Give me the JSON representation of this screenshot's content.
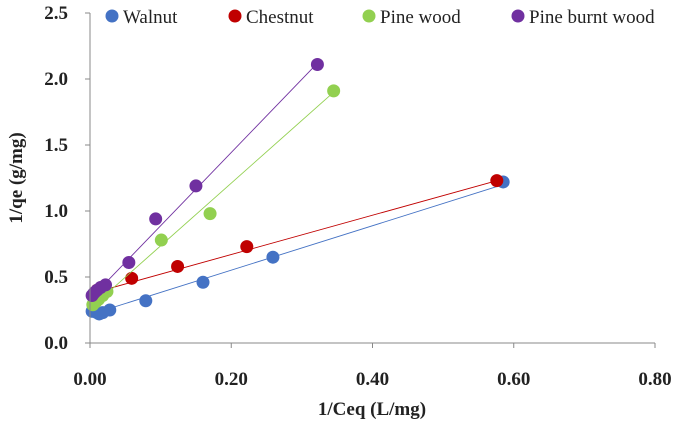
{
  "chart_data": {
    "type": "scatter",
    "title": "",
    "xlabel": "1/Ceq (L/mg)",
    "ylabel": "1/qe (g/mg)",
    "xlim": [
      0,
      0.8
    ],
    "ylim": [
      0,
      2.5
    ],
    "x_ticks": [
      "0.00",
      "0.20",
      "0.40",
      "0.60",
      "0.80"
    ],
    "y_ticks": [
      "0.0",
      "0.5",
      "1.0",
      "1.5",
      "2.0",
      "2.5"
    ],
    "grid": false,
    "legend_position": "top",
    "series": [
      {
        "name": "Walnut",
        "color": "#4472C4",
        "x": [
          0.003,
          0.006,
          0.01,
          0.013,
          0.018,
          0.028,
          0.079,
          0.16,
          0.259,
          0.585
        ],
        "y": [
          0.24,
          0.25,
          0.23,
          0.22,
          0.23,
          0.25,
          0.32,
          0.46,
          0.65,
          1.22
        ],
        "trendline": [
          [
            0.003,
            0.22
          ],
          [
            0.585,
            1.2
          ]
        ]
      },
      {
        "name": "Chestnut",
        "color": "#C00000",
        "x": [
          0.005,
          0.01,
          0.015,
          0.02,
          0.059,
          0.124,
          0.222,
          0.576
        ],
        "y": [
          0.36,
          0.4,
          0.41,
          0.43,
          0.49,
          0.58,
          0.73,
          1.23
        ],
        "trendline": [
          [
            0.005,
            0.38
          ],
          [
            0.576,
            1.23
          ]
        ]
      },
      {
        "name": "Pine wood",
        "color": "#92D050",
        "x": [
          0.004,
          0.008,
          0.012,
          0.018,
          0.024,
          0.101,
          0.17,
          0.345
        ],
        "y": [
          0.29,
          0.31,
          0.33,
          0.36,
          0.39,
          0.78,
          0.98,
          1.91
        ],
        "trendline": [
          [
            0.004,
            0.28
          ],
          [
            0.345,
            1.9
          ]
        ]
      },
      {
        "name": "Pine burnt wood",
        "color": "#7030A0",
        "x": [
          0.003,
          0.006,
          0.01,
          0.015,
          0.022,
          0.055,
          0.093,
          0.15,
          0.322
        ],
        "y": [
          0.36,
          0.38,
          0.4,
          0.42,
          0.44,
          0.61,
          0.94,
          1.19,
          2.11
        ],
        "trendline": [
          [
            0.003,
            0.35
          ],
          [
            0.322,
            2.12
          ]
        ]
      }
    ]
  }
}
